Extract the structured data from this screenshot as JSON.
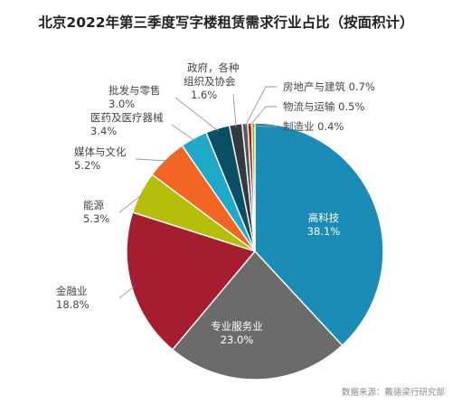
{
  "chart_data": {
    "type": "pie",
    "title": "北京2022年第三季度写字楼租赁需求行业占比（按面积计）",
    "source": "数据来源：戴德梁行研究部",
    "start_angle_deg": 0,
    "direction": "clockwise",
    "slices": [
      {
        "label": "高科技",
        "value": 38.1,
        "value_text": "38.1%",
        "color": "#1a8cb5"
      },
      {
        "label": "专业服务业",
        "value": 23.0,
        "value_text": "23.0%",
        "color": "#6b6b6b"
      },
      {
        "label": "金融业",
        "value": 18.8,
        "value_text": "18.8%",
        "color": "#a51d2e"
      },
      {
        "label": "能源",
        "value": 5.3,
        "value_text": "5.3%",
        "color": "#b5bf09"
      },
      {
        "label": "媒体与文化",
        "value": 5.2,
        "value_text": "5.2%",
        "color": "#f26522"
      },
      {
        "label": "医药及医疗器械",
        "value": 3.4,
        "value_text": "3.4%",
        "color": "#1ea9c9"
      },
      {
        "label": "批发与零售",
        "value": 3.0,
        "value_text": "3.0%",
        "color": "#0b4f66"
      },
      {
        "label": "政府，各种组织及协会",
        "value": 1.6,
        "value_text": "1.6%",
        "color": "#333b41"
      },
      {
        "label": "房地产与建筑",
        "value": 0.7,
        "value_text": "0.7%",
        "color": "#5a5a5a"
      },
      {
        "label": "物流与运输",
        "value": 0.5,
        "value_text": "0.5%",
        "color": "#ad1a1a"
      },
      {
        "label": "制造业",
        "value": 0.4,
        "value_text": "0.4%",
        "color": "#a3b10a"
      }
    ]
  }
}
